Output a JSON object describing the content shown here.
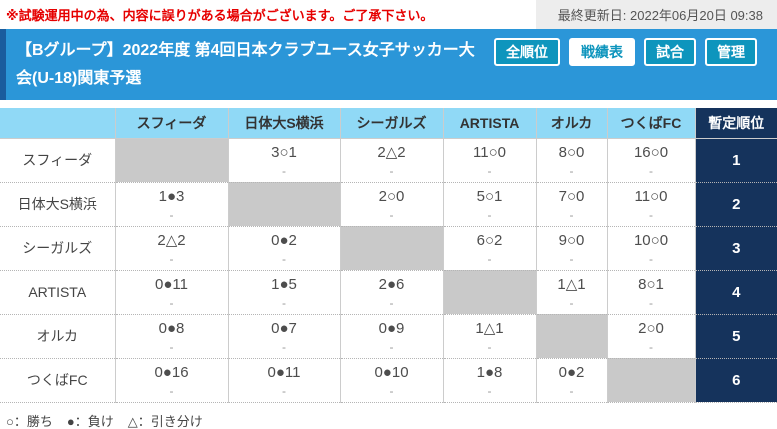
{
  "colors": {
    "header_bg": "#2b96d8",
    "header_stripe": "#1a5c9e",
    "tab_teal": "#0e95bd",
    "table_head_bg": "#90d9f6",
    "rank_navy": "#15335c",
    "self_cell_gray": "#c9c9c9",
    "warning_red": "#e60000"
  },
  "top_bar": {
    "warning": "※試験運用中の為、内容に誤りがある場合がございます。ご了承下さい。",
    "last_updated": "最終更新日: 2022年06月20日 09:38"
  },
  "header": {
    "title": "【Bグループ】2022年度 第4回日本クラブユース女子サッカー大会(U-18)関東予選",
    "tabs": [
      {
        "label": "全順位",
        "active": false
      },
      {
        "label": "戦績表",
        "active": true
      },
      {
        "label": "試合",
        "active": false
      },
      {
        "label": "管理",
        "active": false
      }
    ]
  },
  "table": {
    "col_headers": [
      "",
      "スフィーダ",
      "日体大S横浜",
      "シーガルズ",
      "ARTISTA",
      "オルカ",
      "つくばFC",
      "暫定順位"
    ],
    "rows": [
      {
        "team": "スフィーダ",
        "cells": [
          {
            "self": true
          },
          {
            "result": "3○1",
            "note": "-"
          },
          {
            "result": "2△2",
            "note": "-"
          },
          {
            "result": "11○0",
            "note": "-"
          },
          {
            "result": "8○0",
            "note": "-"
          },
          {
            "result": "16○0",
            "note": "-"
          }
        ],
        "rank": "1"
      },
      {
        "team": "日体大S横浜",
        "cells": [
          {
            "result": "1●3",
            "note": "-"
          },
          {
            "self": true
          },
          {
            "result": "2○0",
            "note": "-"
          },
          {
            "result": "5○1",
            "note": "-"
          },
          {
            "result": "7○0",
            "note": "-"
          },
          {
            "result": "11○0",
            "note": "-"
          }
        ],
        "rank": "2"
      },
      {
        "team": "シーガルズ",
        "cells": [
          {
            "result": "2△2",
            "note": "-"
          },
          {
            "result": "0●2",
            "note": "-"
          },
          {
            "self": true
          },
          {
            "result": "6○2",
            "note": "-"
          },
          {
            "result": "9○0",
            "note": "-"
          },
          {
            "result": "10○0",
            "note": "-"
          }
        ],
        "rank": "3"
      },
      {
        "team": "ARTISTA",
        "cells": [
          {
            "result": "0●11",
            "note": "-"
          },
          {
            "result": "1●5",
            "note": "-"
          },
          {
            "result": "2●6",
            "note": "-"
          },
          {
            "self": true
          },
          {
            "result": "1△1",
            "note": "-"
          },
          {
            "result": "8○1",
            "note": "-"
          }
        ],
        "rank": "4"
      },
      {
        "team": "オルカ",
        "cells": [
          {
            "result": "0●8",
            "note": "-"
          },
          {
            "result": "0●7",
            "note": "-"
          },
          {
            "result": "0●9",
            "note": "-"
          },
          {
            "result": "1△1",
            "note": "-"
          },
          {
            "self": true
          },
          {
            "result": "2○0",
            "note": "-"
          }
        ],
        "rank": "5"
      },
      {
        "team": "つくばFC",
        "cells": [
          {
            "result": "0●16",
            "note": "-"
          },
          {
            "result": "0●11",
            "note": "-"
          },
          {
            "result": "0●10",
            "note": "-"
          },
          {
            "result": "1●8",
            "note": "-"
          },
          {
            "result": "0●2",
            "note": "-"
          },
          {
            "self": true
          }
        ],
        "rank": "6"
      }
    ]
  },
  "legend": {
    "items": [
      {
        "text": "○：勝ち"
      },
      {
        "text": "●：負け"
      },
      {
        "text": "△：引き分け"
      }
    ]
  }
}
